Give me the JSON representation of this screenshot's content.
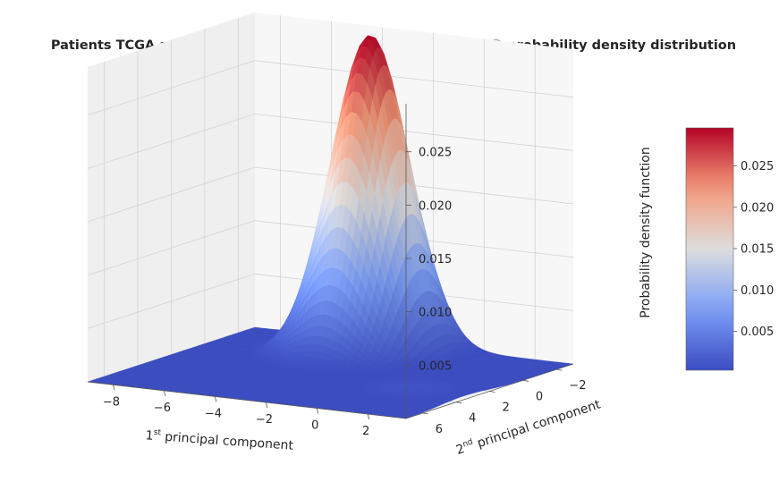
{
  "chart_data": {
    "type": "surface3d",
    "title": "Patients TCGA applying PCA with 3 principal components - 2D probability density distribution",
    "xlabel": {
      "prefix": "1",
      "sup": "st",
      "suffix": " principal component"
    },
    "ylabel": {
      "prefix": "2",
      "sup": "nd",
      "suffix": " principal component"
    },
    "zlabel": "Probability density function",
    "x_ticks": [
      "2",
      "0",
      "−2",
      "−4",
      "−6",
      "−8"
    ],
    "x_tick_values": [
      2,
      0,
      -2,
      -4,
      -6,
      -8
    ],
    "y_ticks": [
      "6",
      "4",
      "2",
      "0",
      "−2"
    ],
    "y_tick_values": [
      6,
      4,
      2,
      0,
      -2
    ],
    "z_ticks": [
      "0.005",
      "0.010",
      "0.015",
      "0.020",
      "0.025"
    ],
    "z_tick_values": [
      0.005,
      0.01,
      0.015,
      0.02,
      0.025
    ],
    "xlim": [
      3.5,
      -9
    ],
    "ylim": [
      7,
      -3
    ],
    "zlim": [
      0,
      0.0295
    ],
    "colormap": "coolwarm",
    "colorbar": {
      "ticks": [
        "0.005",
        "0.010",
        "0.015",
        "0.020",
        "0.025"
      ],
      "tick_values": [
        0.005,
        0.01,
        0.015,
        0.02,
        0.025
      ],
      "range": [
        0.0003,
        0.0296
      ]
    },
    "density_components": [
      {
        "weight": 0.975,
        "mean_x": -3.5,
        "mean_y": -1.5,
        "sigma_x": 1.25,
        "sigma_y": 1.4
      },
      {
        "weight": 0.025,
        "mean_x": 1.5,
        "mean_y": 3.5,
        "sigma_x": 1.6,
        "sigma_y": 1.4
      }
    ],
    "peak_density": 0.0296,
    "grid": true
  }
}
